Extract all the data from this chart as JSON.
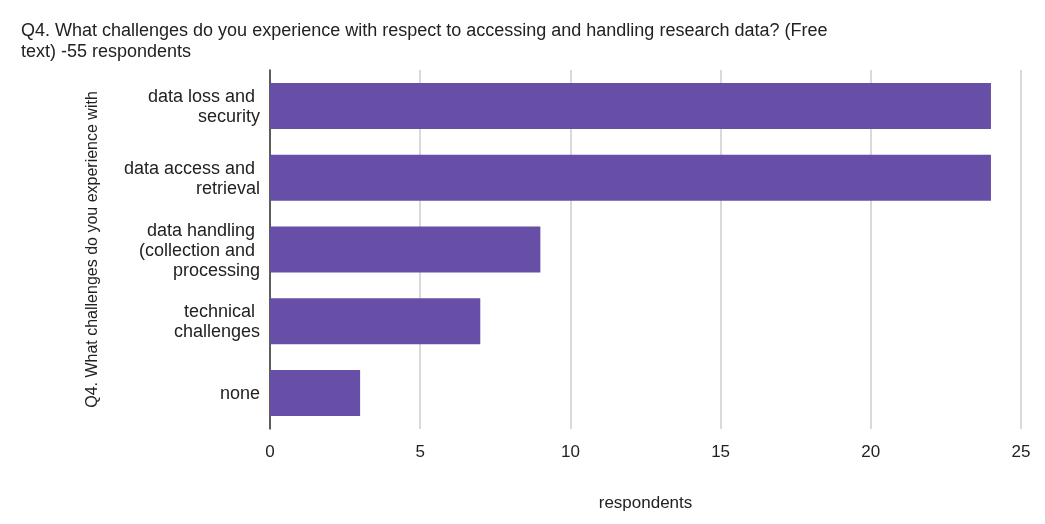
{
  "chart_data": {
    "type": "bar",
    "orientation": "horizontal",
    "title": "Q4. What challenges do you experience with respect to accessing and handling research data? (Free text) -55 respondents",
    "xlabel": "respondents",
    "ylabel": "Q4. What challenges do you experience with",
    "categories": [
      "data loss and security",
      "data access and retrieval",
      "data handling (collection and processing",
      "technical challenges",
      "none"
    ],
    "series": [
      {
        "color": "#674ea7",
        "values": [
          24,
          24,
          9,
          7,
          3
        ]
      }
    ],
    "xlim": [
      0,
      25
    ],
    "xticks": [
      0,
      5,
      10,
      15,
      20,
      25
    ],
    "grid": "x"
  }
}
